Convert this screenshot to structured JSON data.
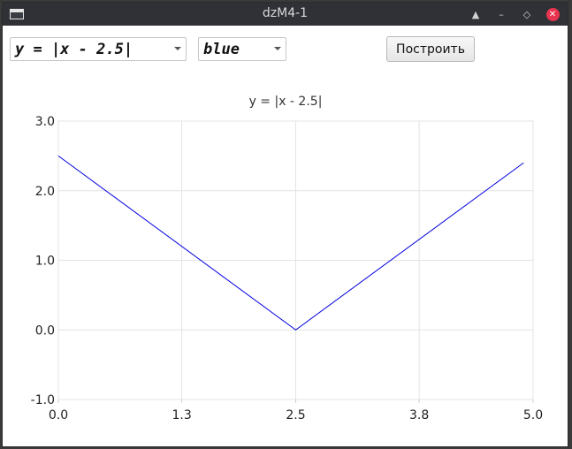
{
  "window": {
    "title": "dzM4-1"
  },
  "toolbar": {
    "formula_selected": "y = |x - 2.5|",
    "color_selected": "blue",
    "build_button_label": "Построить"
  },
  "colors": {
    "line": "#0000dd",
    "grid": "#e4e4e4",
    "axis": "#cfcfcf",
    "close": "#e8344e"
  },
  "chart_data": {
    "type": "line",
    "title": "y = |x - 2.5|",
    "xlabel": "",
    "ylabel": "",
    "xlim": [
      0.0,
      5.0
    ],
    "ylim": [
      -1.0,
      3.0
    ],
    "x_ticks": [
      "0.0",
      "1.3",
      "2.5",
      "3.8",
      "5.0"
    ],
    "y_ticks": [
      "3.0",
      "2.0",
      "1.0",
      "0.0",
      "-1.0"
    ],
    "grid": true,
    "series": [
      {
        "x": [
          0.0,
          2.5,
          4.9
        ],
        "y": [
          2.5,
          0.0,
          2.4
        ]
      }
    ]
  }
}
